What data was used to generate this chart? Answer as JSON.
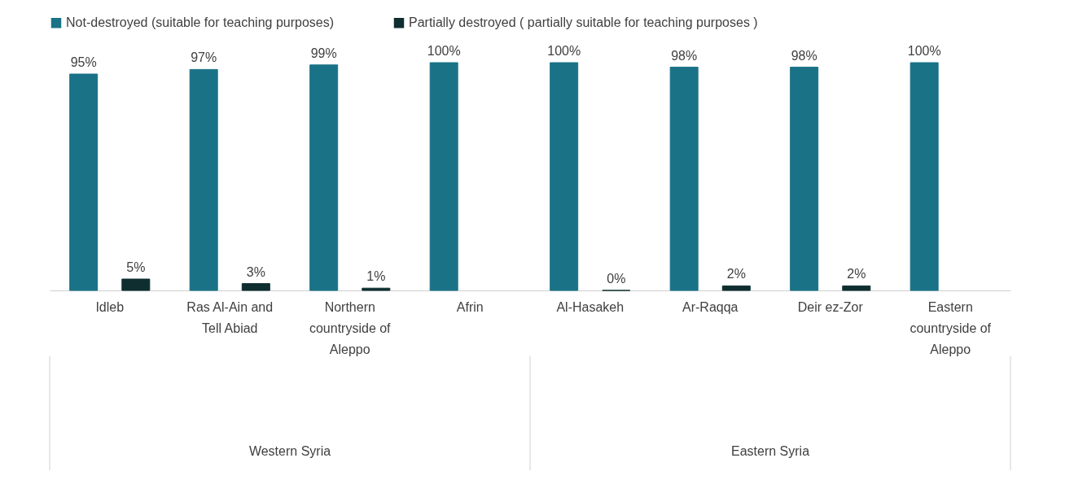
{
  "chart_data": {
    "type": "bar",
    "categories": [
      "Idleb",
      "Ras Al-Ain and Tell Abiad",
      "Northern countryside of Aleppo",
      "Afrin",
      "Al-Hasakeh",
      "Ar-Raqqa",
      "Deir  ez-Zor",
      "Eastern countryside of Aleppo"
    ],
    "series": [
      {
        "name": "Not-destroyed (suitable for teaching purposes)",
        "color": "#1a7287",
        "values": [
          95,
          97,
          99,
          100,
          100,
          98,
          98,
          100
        ],
        "value_labels": [
          "95%",
          "97%",
          "99%",
          "100%",
          "100%",
          "98%",
          "98%",
          "100%"
        ]
      },
      {
        "name": "Partially  destroyed ( partially suitable for teaching purposes )",
        "color": "#0f2e30",
        "values": [
          5,
          3,
          1,
          null,
          0,
          2,
          2,
          null
        ],
        "value_labels": [
          "5%",
          "3%",
          "1%",
          null,
          "0%",
          "2%",
          "2%",
          null
        ]
      }
    ],
    "annotations": [
      "Western Syria",
      "Eastern Syria"
    ],
    "legend": "top"
  }
}
